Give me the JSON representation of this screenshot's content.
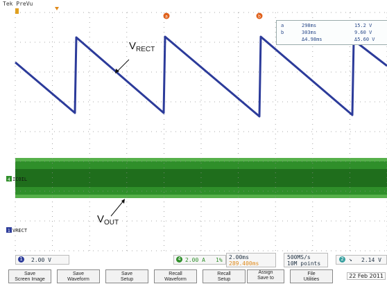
{
  "header": {
    "status_text": "Tek PreVu"
  },
  "markers": {
    "cursor_a": "a",
    "cursor_b": "b"
  },
  "readout": {
    "rows": [
      {
        "label": "a",
        "time": "298ms",
        "value": "15.2 V"
      },
      {
        "label": "b",
        "time": "303ms",
        "value": "9.60 V"
      },
      {
        "label": "Δ",
        "time": "Δ4.98ms",
        "value": "Δ5.60 V"
      }
    ]
  },
  "annotations": {
    "v_rect": {
      "main": "V",
      "sub": "RECT"
    },
    "v_out": {
      "main": "V",
      "sub": "OUT"
    }
  },
  "channels": {
    "icoil_label": "ICOIL",
    "vrect_label": "VRECT"
  },
  "status_bar": {
    "ch1_number": "1",
    "ch1_scale": "2.00 V",
    "ch4_number": "4",
    "ch4_scale": "2.00 A",
    "ch4_bw": "1%",
    "timebase": "2.00ms",
    "trigger_pos": "289.400ms",
    "sample_rate": "500MS/s",
    "record_length": "10M points",
    "trig_channel": "2",
    "trig_level": "2.14 V"
  },
  "softkeys": [
    {
      "line1": "Save",
      "line2": "Screen Image"
    },
    {
      "line1": "Save",
      "line2": "Waveform"
    },
    {
      "line1": "Save",
      "line2": "Setup"
    },
    {
      "line1": "Recall",
      "line2": "Waveform"
    },
    {
      "line1": "Recall",
      "line2": "Setup"
    },
    {
      "line1": "Assign",
      "line2": "Save to"
    },
    {
      "line1": "File",
      "line2": "Utilities"
    }
  ],
  "date": "22 Feb 2011",
  "colors": {
    "grid": "#8e8e8e",
    "ch1_trace": "#2c3b9a",
    "ch4_band": "#2f8f2a",
    "ch4_band_dark": "#1f6e1c",
    "cursor_marker": "#e0601a"
  }
}
